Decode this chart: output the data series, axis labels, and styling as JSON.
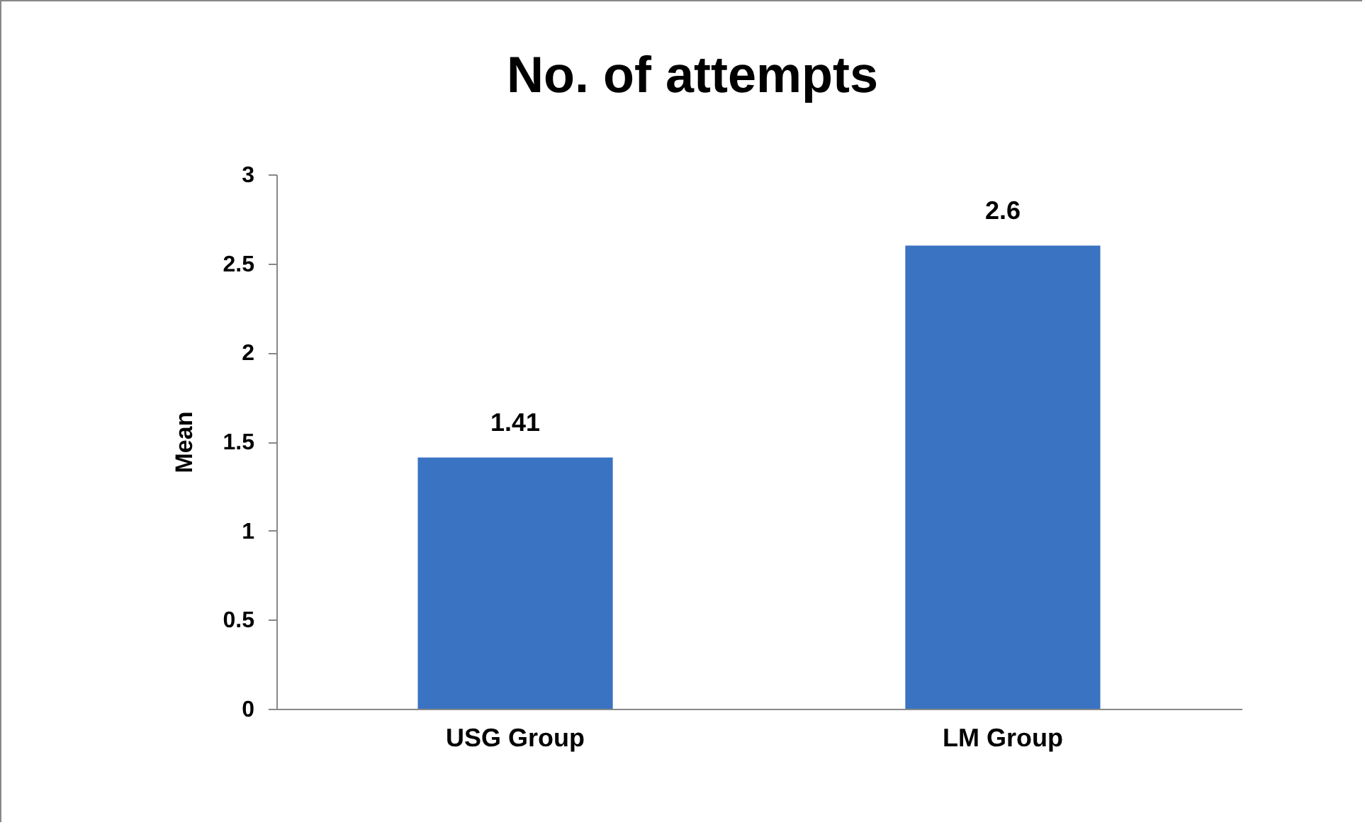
{
  "chart_data": {
    "type": "bar",
    "title": "No. of attempts",
    "ylabel": "Mean",
    "categories": [
      "USG Group",
      "LM Group"
    ],
    "values": [
      1.41,
      2.6
    ],
    "color": "#3a73c2",
    "ylim": [
      0,
      3
    ],
    "yticks": [
      0,
      0.5,
      1,
      1.5,
      2,
      2.5,
      3
    ],
    "grid": false,
    "data_labels": true
  }
}
